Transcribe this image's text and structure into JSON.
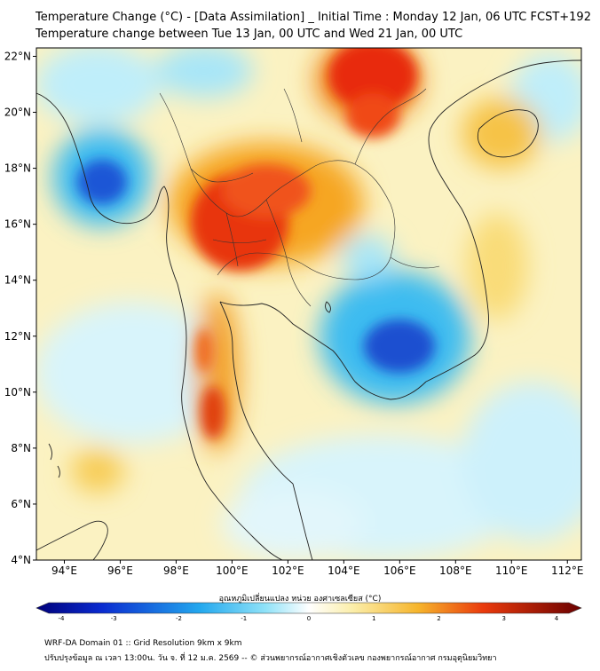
{
  "header": {
    "title_line1": "Temperature Change (°C) - [Data Assimilation] _ Initial Time : Monday 12 Jan, 06 UTC FCST+192",
    "title_line2": "Temperature change between Tue 13 Jan, 00 UTC and Wed 21 Jan, 00 UTC"
  },
  "axes": {
    "lat_ticks": [
      "22°N",
      "20°N",
      "18°N",
      "16°N",
      "14°N",
      "12°N",
      "10°N",
      "8°N",
      "6°N",
      "4°N"
    ],
    "lon_ticks": [
      "94°E",
      "96°E",
      "98°E",
      "100°E",
      "102°E",
      "104°E",
      "106°E",
      "108°E",
      "110°E",
      "112°E"
    ],
    "lat_range": [
      4,
      22.3
    ],
    "lon_range": [
      93,
      112.5
    ]
  },
  "colorbar": {
    "label": "อุณหภูมิเปลี่ยนแปลง หน่วย องศาเซลเซียส (°C)",
    "ticks": [
      "-4",
      "-3",
      "-2",
      "-1",
      "0",
      "1",
      "2",
      "3",
      "4"
    ],
    "range": [
      -4,
      4
    ]
  },
  "footer": {
    "line1": "WRF-DA Domain 01 :: Grid Resolution 9km x 9km",
    "line2": "ปรับปรุงข้อมูล ณ เวลา 13:00น. วัน จ. ที่ 12 ม.ค. 2569 -- © ส่วนพยากรณ์อากาศเชิงตัวเลข กองพยากรณ์อากาศ กรมอุตุนิยมวิทยา"
  },
  "colors": {
    "strong_cool": "#1a4fd0",
    "cool": "#3cc0ef",
    "neutral_light": "#dff6fb",
    "warm_light": "#fbf2c2",
    "warm": "#f5a623",
    "hot": "#e8290c",
    "hottest": "#b80000",
    "coastline": "#222222"
  }
}
